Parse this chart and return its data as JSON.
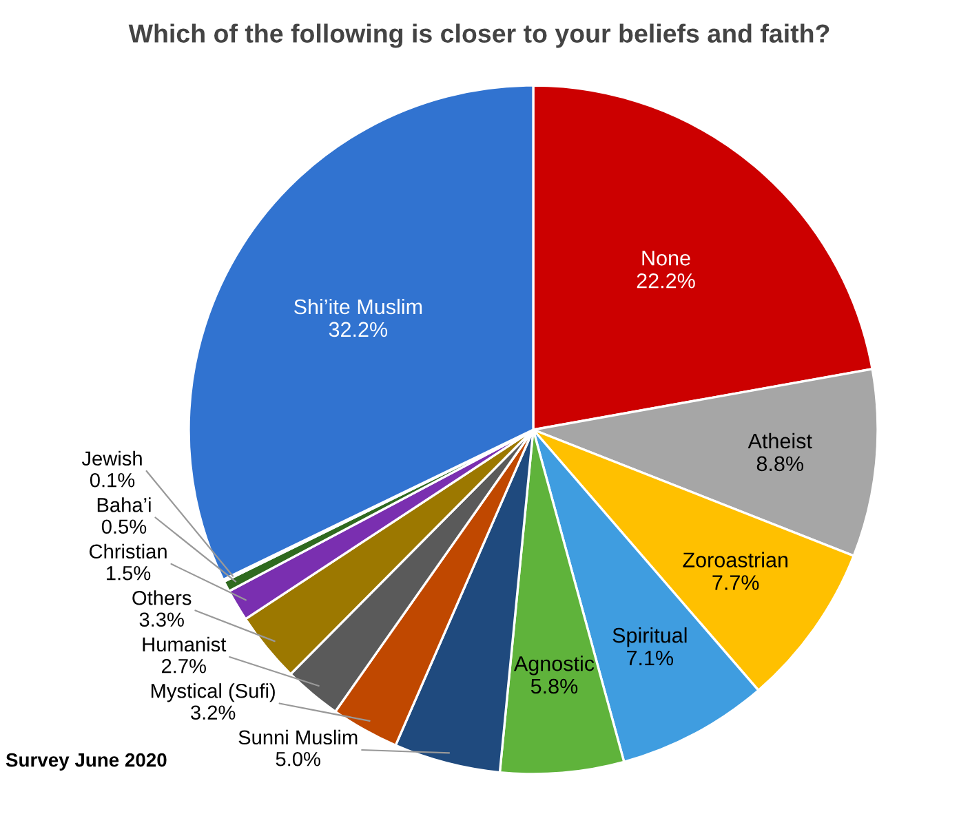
{
  "chart_data": {
    "type": "pie",
    "title": "Which of the following is closer to your beliefs and faith?",
    "categories": [
      "None",
      "Atheist",
      "Zoroastrian",
      "Spiritual",
      "Agnostic",
      "Sunni Muslim",
      "Mystical (Sufi)",
      "Humanist",
      "Others",
      "Christian",
      "Baha’i",
      "Jewish",
      "Shi’ite Muslim"
    ],
    "values": [
      22.2,
      8.8,
      7.7,
      7.1,
      5.8,
      5.0,
      3.2,
      2.7,
      3.3,
      1.5,
      0.5,
      0.1,
      32.2
    ],
    "colors": [
      "#cc0000",
      "#a6a6a6",
      "#ffc000",
      "#3f9de0",
      "#5fb33b",
      "#1f4a7e",
      "#c04800",
      "#5a5a5a",
      "#9c7800",
      "#7a2fb0",
      "#2f6a1f",
      "#2a5aa8",
      "#3173d0"
    ],
    "value_labels": [
      "22.2%",
      "8.8%",
      "7.7%",
      "7.1%",
      "5.8%",
      "5.0%",
      "3.2%",
      "2.7%",
      "3.3%",
      "1.5%",
      "0.5%",
      "0.1%",
      "32.2%"
    ],
    "annotations": [
      "Survey June 2020"
    ]
  }
}
